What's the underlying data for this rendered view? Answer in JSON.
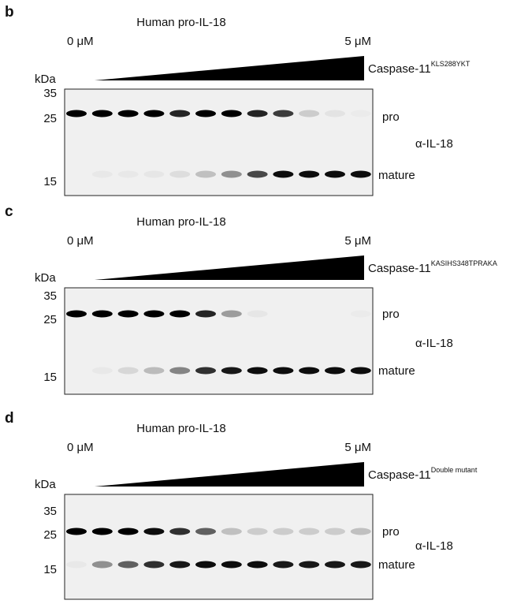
{
  "panels": [
    {
      "label": "b",
      "title": "Human pro-IL-18",
      "conc_start": "0 μM",
      "conc_end": "5 μM",
      "enzyme": "Caspase-11",
      "enzyme_sup": "KLS288YKT",
      "kda": "kDa",
      "markers": [
        "35",
        "25",
        "15"
      ],
      "bands": [
        "pro",
        "mature"
      ],
      "antibody": "α-IL-18"
    },
    {
      "label": "c",
      "title": "Human pro-IL-18",
      "conc_start": "0 μM",
      "conc_end": "5 μM",
      "enzyme": "Caspase-11",
      "enzyme_sup": "KASIHS348TPRAKA",
      "kda": "kDa",
      "markers": [
        "35",
        "25",
        "15"
      ],
      "bands": [
        "pro",
        "mature"
      ],
      "antibody": "α-IL-18"
    },
    {
      "label": "d",
      "title": "Human pro-IL-18",
      "conc_start": "0 μM",
      "conc_end": "5 μM",
      "enzyme": "Caspase-11",
      "enzyme_sup": "Double mutant",
      "kda": "kDa",
      "markers": [
        "35",
        "25",
        "15"
      ],
      "bands": [
        "pro",
        "mature"
      ],
      "antibody": "α-IL-18"
    }
  ]
}
